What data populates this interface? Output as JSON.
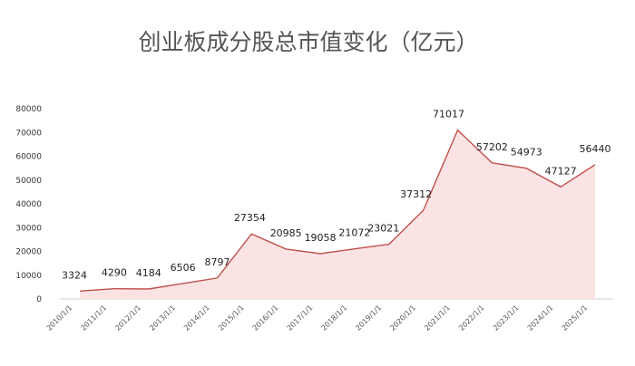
{
  "chart_data": {
    "type": "area",
    "title": "创业板成分股总市值变化（亿元）",
    "xlabel": "",
    "ylabel": "",
    "categories": [
      "2010/1/1",
      "2011/1/1",
      "2012/1/1",
      "2013/1/1",
      "2014/1/1",
      "2015/1/1",
      "2016/1/1",
      "2017/1/1",
      "2018/1/1",
      "2019/1/1",
      "2020/1/1",
      "2021/1/1",
      "2022/1/1",
      "2023/1/1",
      "2024/1/1",
      "2025/1/1"
    ],
    "values": [
      3324,
      4290,
      4184,
      6506,
      8797,
      27354,
      20985,
      19058,
      21072,
      23021,
      37312,
      71017,
      57202,
      54973,
      47127,
      56440
    ],
    "data_labels": [
      "3324",
      "4290",
      "4184",
      "6506",
      "8797",
      "27354",
      "20985",
      "19058",
      "21072",
      "23021",
      "37312",
      "71017",
      "57202",
      "54973",
      "47127",
      "56440"
    ],
    "y_ticks": [
      "0",
      "10000",
      "20000",
      "30000",
      "40000",
      "50000",
      "60000",
      "70000",
      "80000"
    ],
    "ylim": [
      0,
      80000
    ],
    "grid": false,
    "legend": "none",
    "colors": {
      "line": "#c0504d",
      "fill": "#fbe3e4",
      "text": "#222222",
      "title": "#555555"
    }
  }
}
